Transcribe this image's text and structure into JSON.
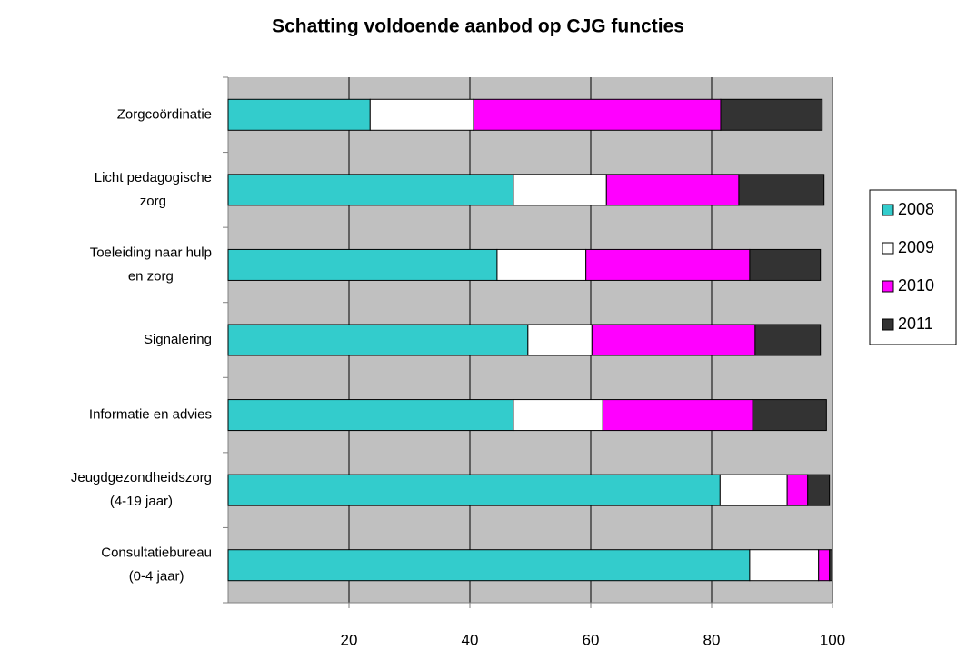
{
  "chart_data": {
    "type": "stacked-bar-horizontal",
    "title": "Schatting voldoende aanbod op CJG functies",
    "categories": [
      "Zorgcoördinatie",
      "Licht pedagogische zorg",
      "Toeleiding naar hulp en zorg",
      "Signalering",
      "Informatie en advies",
      "Jeugdgezondheidszorg (4-19 jaar)",
      "Consultatiebureau (0-4 jaar)"
    ],
    "series": [
      {
        "name": "2008",
        "color": "#33cccc",
        "values": [
          23.5,
          47.2,
          44.5,
          49.6,
          47.2,
          81.4,
          86.3
        ]
      },
      {
        "name": "2009",
        "color": "#ffffff",
        "values": [
          17.1,
          15.4,
          14.7,
          10.6,
          14.8,
          11.1,
          11.4
        ]
      },
      {
        "name": "2010",
        "color": "#ff00ff",
        "values": [
          40.9,
          21.9,
          27.1,
          27.0,
          24.8,
          3.4,
          1.8
        ]
      },
      {
        "name": "2011",
        "color": "#333333",
        "values": [
          16.8,
          14.1,
          11.7,
          10.8,
          12.2,
          3.6,
          0.5
        ]
      }
    ],
    "xlim": [
      0,
      100
    ],
    "xticks": [
      20,
      40,
      60,
      80,
      100
    ],
    "grid": true,
    "legend": "right"
  }
}
